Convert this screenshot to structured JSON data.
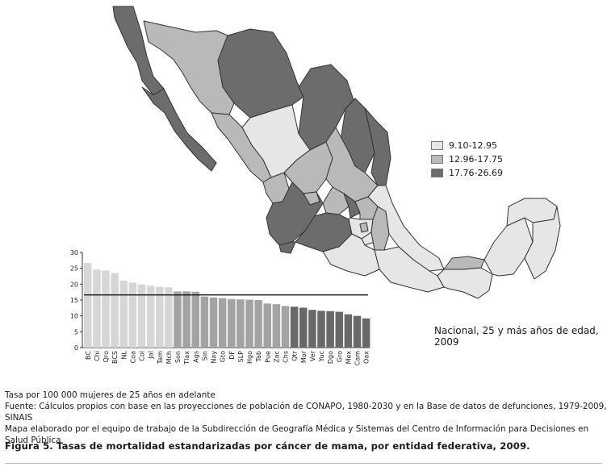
{
  "legend": {
    "items": [
      {
        "label": "9.10-12.95",
        "color": "#e6e6e6"
      },
      {
        "label": "12.96-17.75",
        "color": "#b9b9b9"
      },
      {
        "label": "17.76-26.69",
        "color": "#6c6c6c"
      }
    ]
  },
  "national_label": "Nacional, 25 y más años de edad, 2009",
  "notes": {
    "line1": "Tasa por 100 000 mujeres de 25 años en adelante",
    "line2": "Fuente: Cálculos propios con base en las proyecciones de población de CONAPO, 1980-2030 y en la Base de datos de defunciones, 1979-2009, SINAIS",
    "line3": "Mapa elaborado por el equipo de trabajo de la Subdirección de Geografía Médica y Sistemas del Centro de Información para Decisiones en Salud Pública"
  },
  "caption": "Figura 5. Tasas de mortalidad estandarizadas por cáncer de mama, por entidad federativa, 2009.",
  "chart_data": {
    "type": "bar",
    "ylim": [
      0,
      30
    ],
    "yticks": [
      0,
      5,
      10,
      15,
      20,
      25,
      30
    ],
    "national_line": 16.6,
    "categories": [
      "BC",
      "Chi",
      "Qro",
      "BCS",
      "NL",
      "Coa",
      "Col",
      "Jal",
      "Tam",
      "Mch",
      "Son",
      "Tlax",
      "Ags",
      "Sin",
      "Nay",
      "Gto",
      "DF",
      "SLP",
      "Hgo",
      "Tab",
      "Pue",
      "Zac",
      "Chs",
      "Qtr",
      "Mor",
      "Ver",
      "Yuc",
      "Dgo",
      "Gro",
      "Mex",
      "Cam",
      "Oax"
    ],
    "values": [
      26.7,
      24.6,
      24.3,
      23.5,
      21.1,
      20.5,
      19.9,
      19.5,
      19.2,
      19.0,
      17.7,
      17.7,
      17.6,
      16.1,
      15.8,
      15.6,
      15.3,
      15.2,
      15.1,
      15.0,
      13.9,
      13.7,
      13.1,
      12.9,
      12.6,
      11.9,
      11.6,
      11.5,
      11.3,
      10.5,
      10.0,
      9.2
    ],
    "colors": {
      "light": "#d6d6d6",
      "mid": "#a3a3a3",
      "dark": "#686868"
    }
  }
}
